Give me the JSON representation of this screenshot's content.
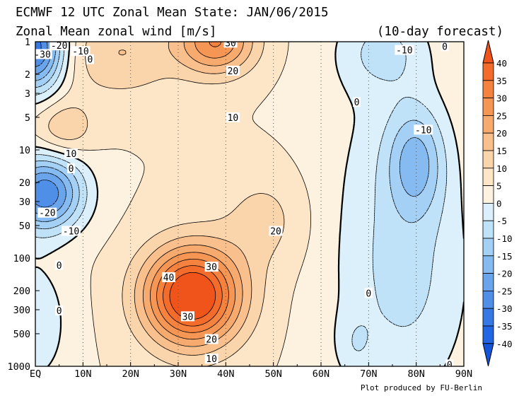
{
  "chart_data": {
    "type": "contour",
    "title": "ECMWF 12 UTC Zonal Mean State: JAN/06/2015",
    "subtitle": "Zonal Mean zonal wind [m/s]",
    "note": "(10-day forecast)",
    "credit": "Plot produced by FU-Berlin",
    "x_ticks": [
      "EQ",
      "10N",
      "20N",
      "30N",
      "40N",
      "50N",
      "60N",
      "70N",
      "80N",
      "90N"
    ],
    "x_range": [
      0,
      90
    ],
    "y_ticks": [
      "1",
      "2",
      "3",
      "5",
      "10",
      "20",
      "30",
      "50",
      "100",
      "200",
      "300",
      "500",
      "1000"
    ],
    "y_range": [
      1000,
      1
    ],
    "y_scale": "log",
    "colorbar": {
      "labels": [
        "40",
        "35",
        "30",
        "25",
        "20",
        "15",
        "10",
        "5",
        "0",
        "-5",
        "-10",
        "-15",
        "-20",
        "-25",
        "-30",
        "-35",
        "-40"
      ],
      "bins": [
        {
          "lo": 40,
          "hi": 99,
          "color": "#f0541a"
        },
        {
          "lo": 35,
          "hi": 40,
          "color": "#f36c2c"
        },
        {
          "lo": 30,
          "hi": 35,
          "color": "#f5823e"
        },
        {
          "lo": 25,
          "hi": 30,
          "color": "#f69655"
        },
        {
          "lo": 20,
          "hi": 25,
          "color": "#f7aa6e"
        },
        {
          "lo": 15,
          "hi": 20,
          "color": "#f9bf8c"
        },
        {
          "lo": 10,
          "hi": 15,
          "color": "#fad4ab"
        },
        {
          "lo": 5,
          "hi": 10,
          "color": "#fde5c8"
        },
        {
          "lo": 0,
          "hi": 5,
          "color": "#fdf1df"
        },
        {
          "lo": -5,
          "hi": 0,
          "color": "#dcf0fb"
        },
        {
          "lo": -10,
          "hi": -5,
          "color": "#c0e2f8"
        },
        {
          "lo": -15,
          "hi": -10,
          "color": "#a4d0f5"
        },
        {
          "lo": -20,
          "hi": -15,
          "color": "#86bbf1"
        },
        {
          "lo": -25,
          "hi": -20,
          "color": "#6aa5ec"
        },
        {
          "lo": -30,
          "hi": -25,
          "color": "#4f8fe8"
        },
        {
          "lo": -35,
          "hi": -30,
          "color": "#3679e6"
        },
        {
          "lo": -40,
          "hi": -35,
          "color": "#2266e2"
        },
        {
          "lo": -99,
          "hi": -40,
          "color": "#1455d8"
        }
      ]
    },
    "contour_labels": [
      {
        "text": "-30",
        "x": 1.5,
        "y": 1.3
      },
      {
        "text": "-20",
        "x": 5,
        "y": 1.08
      },
      {
        "text": "-10",
        "x": 9.5,
        "y": 1.22
      },
      {
        "text": "0",
        "x": 11.5,
        "y": 1.45
      },
      {
        "text": "30",
        "x": 41,
        "y": 1.02
      },
      {
        "text": "20",
        "x": 41.5,
        "y": 1.85
      },
      {
        "text": "-10",
        "x": 77.5,
        "y": 1.19
      },
      {
        "text": "0",
        "x": 86,
        "y": 1.1
      },
      {
        "text": "0",
        "x": 67.5,
        "y": 3.6
      },
      {
        "text": "10",
        "x": 41.5,
        "y": 5.0
      },
      {
        "text": "-10",
        "x": 81.5,
        "y": 6.5
      },
      {
        "text": "10",
        "x": 7.5,
        "y": 10.8
      },
      {
        "text": "0",
        "x": 7.5,
        "y": 14.8
      },
      {
        "text": "-20",
        "x": 2.5,
        "y": 38
      },
      {
        "text": "-10",
        "x": 7.5,
        "y": 56
      },
      {
        "text": "20",
        "x": 50.5,
        "y": 56
      },
      {
        "text": "0",
        "x": 5,
        "y": 116
      },
      {
        "text": "30",
        "x": 37,
        "y": 120
      },
      {
        "text": "40",
        "x": 28,
        "y": 150
      },
      {
        "text": "0",
        "x": 70,
        "y": 210
      },
      {
        "text": "30",
        "x": 32,
        "y": 345
      },
      {
        "text": "0",
        "x": 5,
        "y": 305
      },
      {
        "text": "20",
        "x": 37,
        "y": 560
      },
      {
        "text": "10",
        "x": 37,
        "y": 850
      },
      {
        "text": "0",
        "x": 87,
        "y": 960
      }
    ]
  }
}
